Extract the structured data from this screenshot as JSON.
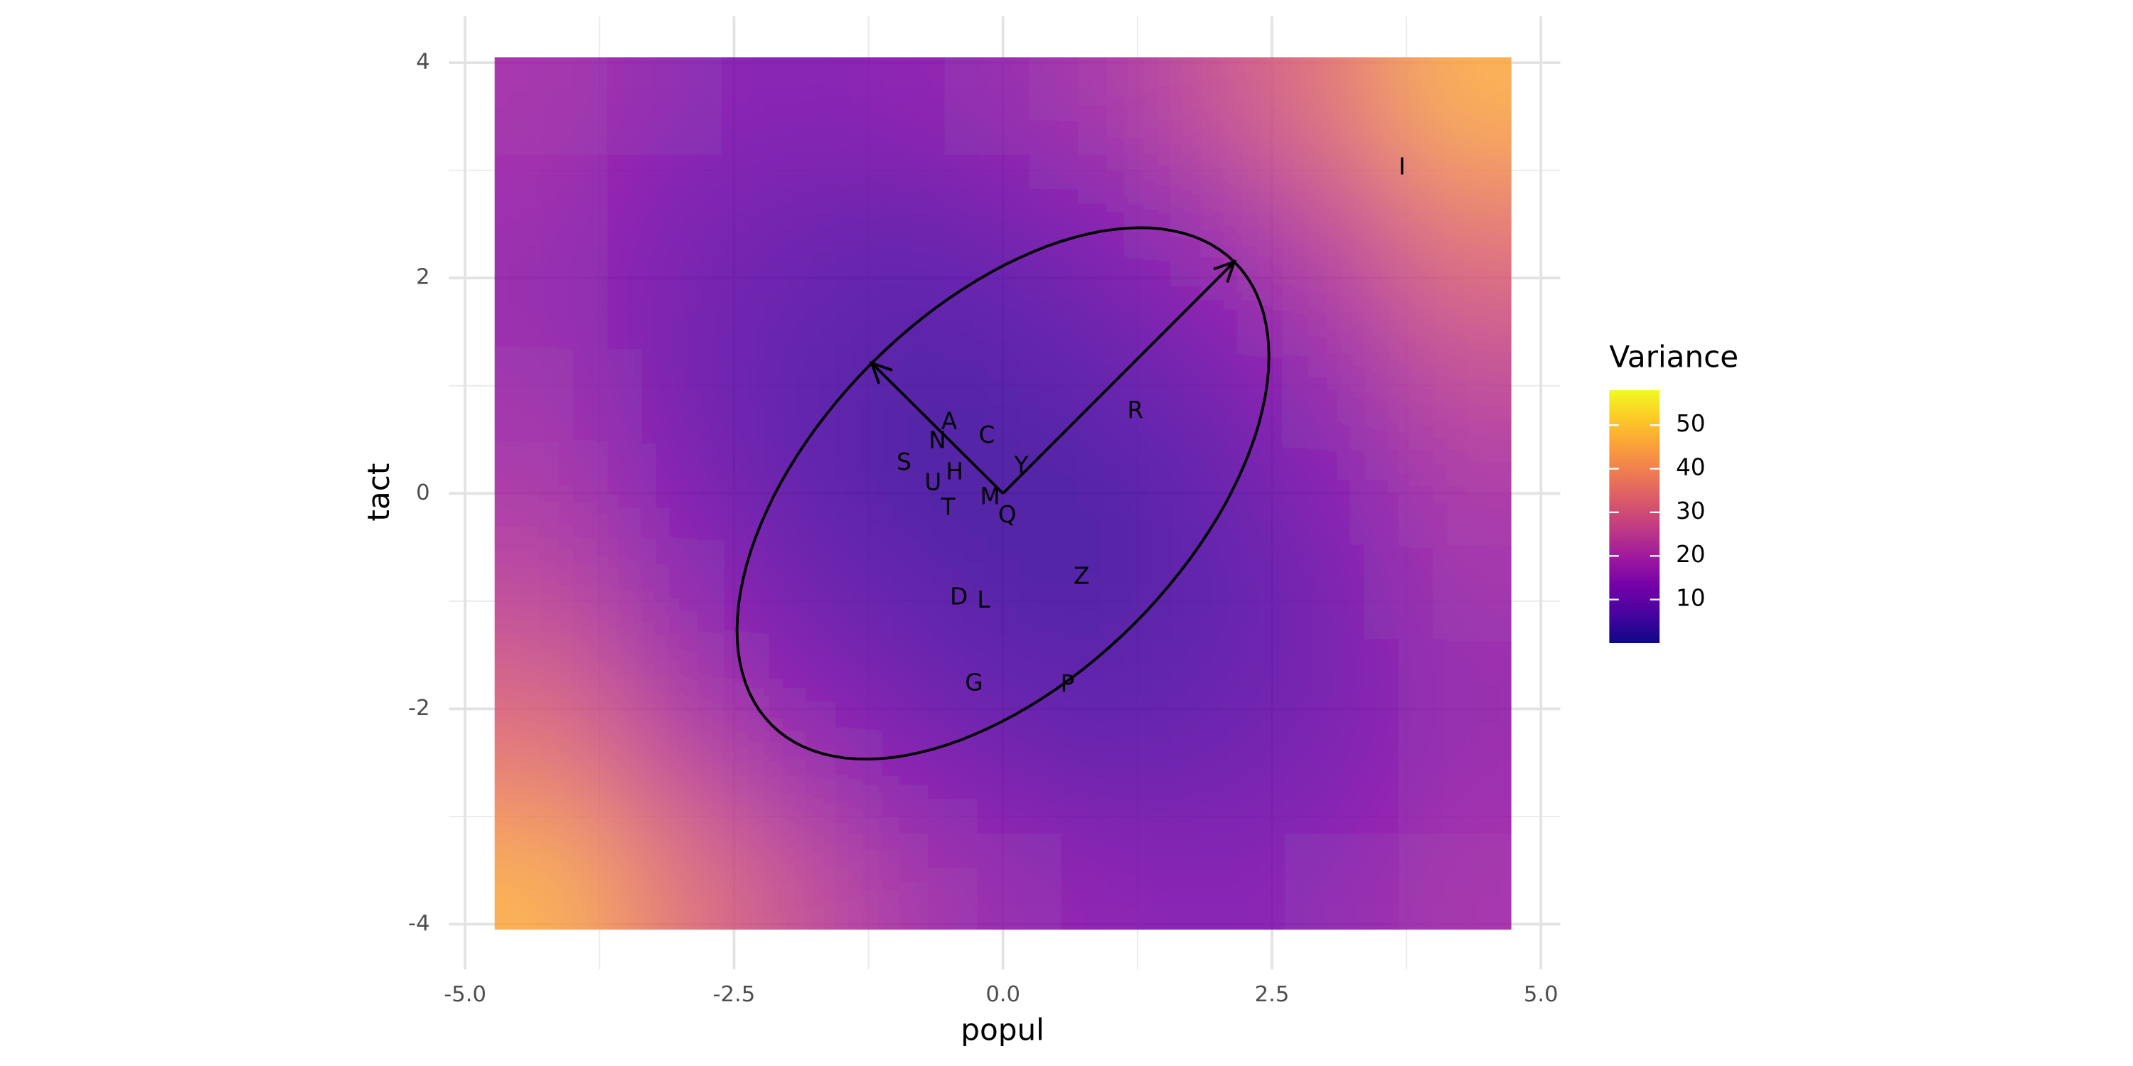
{
  "chart_data": {
    "type": "raster",
    "x_label": "popul",
    "y_label": "tact",
    "xlim": [
      -5.15,
      5.18
    ],
    "ylim": [
      -4.42,
      4.43
    ],
    "xticks": [
      {
        "value": -5,
        "label": "-5.0"
      },
      {
        "value": -2.5,
        "label": "-2.5"
      },
      {
        "value": 0,
        "label": "0.0"
      },
      {
        "value": 2.5,
        "label": "2.5"
      },
      {
        "value": 5,
        "label": "5.0"
      }
    ],
    "yticks": [
      -4,
      -2,
      0,
      2,
      4
    ],
    "x_minor_ticks": [
      -3.75,
      -1.25,
      1.25,
      3.75
    ],
    "y_minor_ticks": [
      -3,
      -1,
      1,
      3
    ],
    "grid": true,
    "raster": {
      "x": [
        -4.2,
        -3.15,
        -2.1,
        -1.05,
        0,
        1.05,
        2.1,
        3.15,
        4.2
      ],
      "y": [
        -3.6,
        -2.7,
        -1.8,
        -0.9,
        0,
        0.9,
        1.8,
        2.7,
        3.6
      ],
      "z": [
        [
          46,
          35,
          27,
          20,
          16,
          14,
          13,
          15,
          19
        ],
        [
          37,
          27,
          20,
          14,
          11,
          9,
          10,
          12,
          17
        ],
        [
          30,
          21,
          14,
          10,
          7,
          6,
          8,
          11,
          16
        ],
        [
          24,
          16,
          10,
          7,
          5,
          5,
          7,
          11,
          18
        ],
        [
          20,
          13,
          8,
          5,
          4,
          5,
          8,
          13,
          20
        ],
        [
          18,
          11,
          7,
          5,
          5,
          7,
          10,
          16,
          24
        ],
        [
          16,
          11,
          8,
          6,
          7,
          10,
          14,
          21,
          30
        ],
        [
          17,
          12,
          10,
          9,
          11,
          14,
          20,
          27,
          37
        ],
        [
          19,
          15,
          13,
          14,
          16,
          20,
          27,
          35,
          46
        ]
      ]
    },
    "legend": {
      "title": "Variance",
      "lim": [
        0,
        58
      ],
      "ticks": [
        10,
        20,
        30,
        40,
        50
      ],
      "colormap": [
        "#0d0887",
        "#46039f",
        "#7201a8",
        "#9c179e",
        "#bd3786",
        "#d8576b",
        "#ed7953",
        "#fb9f3a",
        "#fdca26",
        "#f0f921"
      ]
    },
    "points": {
      "labels": [
        "A",
        "C",
        "N",
        "S",
        "H",
        "U",
        "Y",
        "M",
        "T",
        "Q",
        "R",
        "I",
        "Z",
        "D",
        "L",
        "G",
        "P"
      ],
      "x": [
        -0.5,
        -0.15,
        -0.61,
        -0.92,
        -0.45,
        -0.65,
        0.17,
        -0.12,
        -0.51,
        0.04,
        1.23,
        3.71,
        0.73,
        -0.41,
        -0.18,
        -0.27,
        0.6
      ],
      "y": [
        0.66,
        0.53,
        0.48,
        0.28,
        0.19,
        0.09,
        0.25,
        -0.04,
        -0.14,
        -0.21,
        0.76,
        3.02,
        -0.78,
        -0.97,
        -1.0,
        -1.77,
        -1.78
      ]
    },
    "arrows": [
      {
        "x": 2.15,
        "y": 2.15
      },
      {
        "x": -1.22,
        "y": 1.21
      }
    ],
    "ellipse_color": "#000000"
  }
}
